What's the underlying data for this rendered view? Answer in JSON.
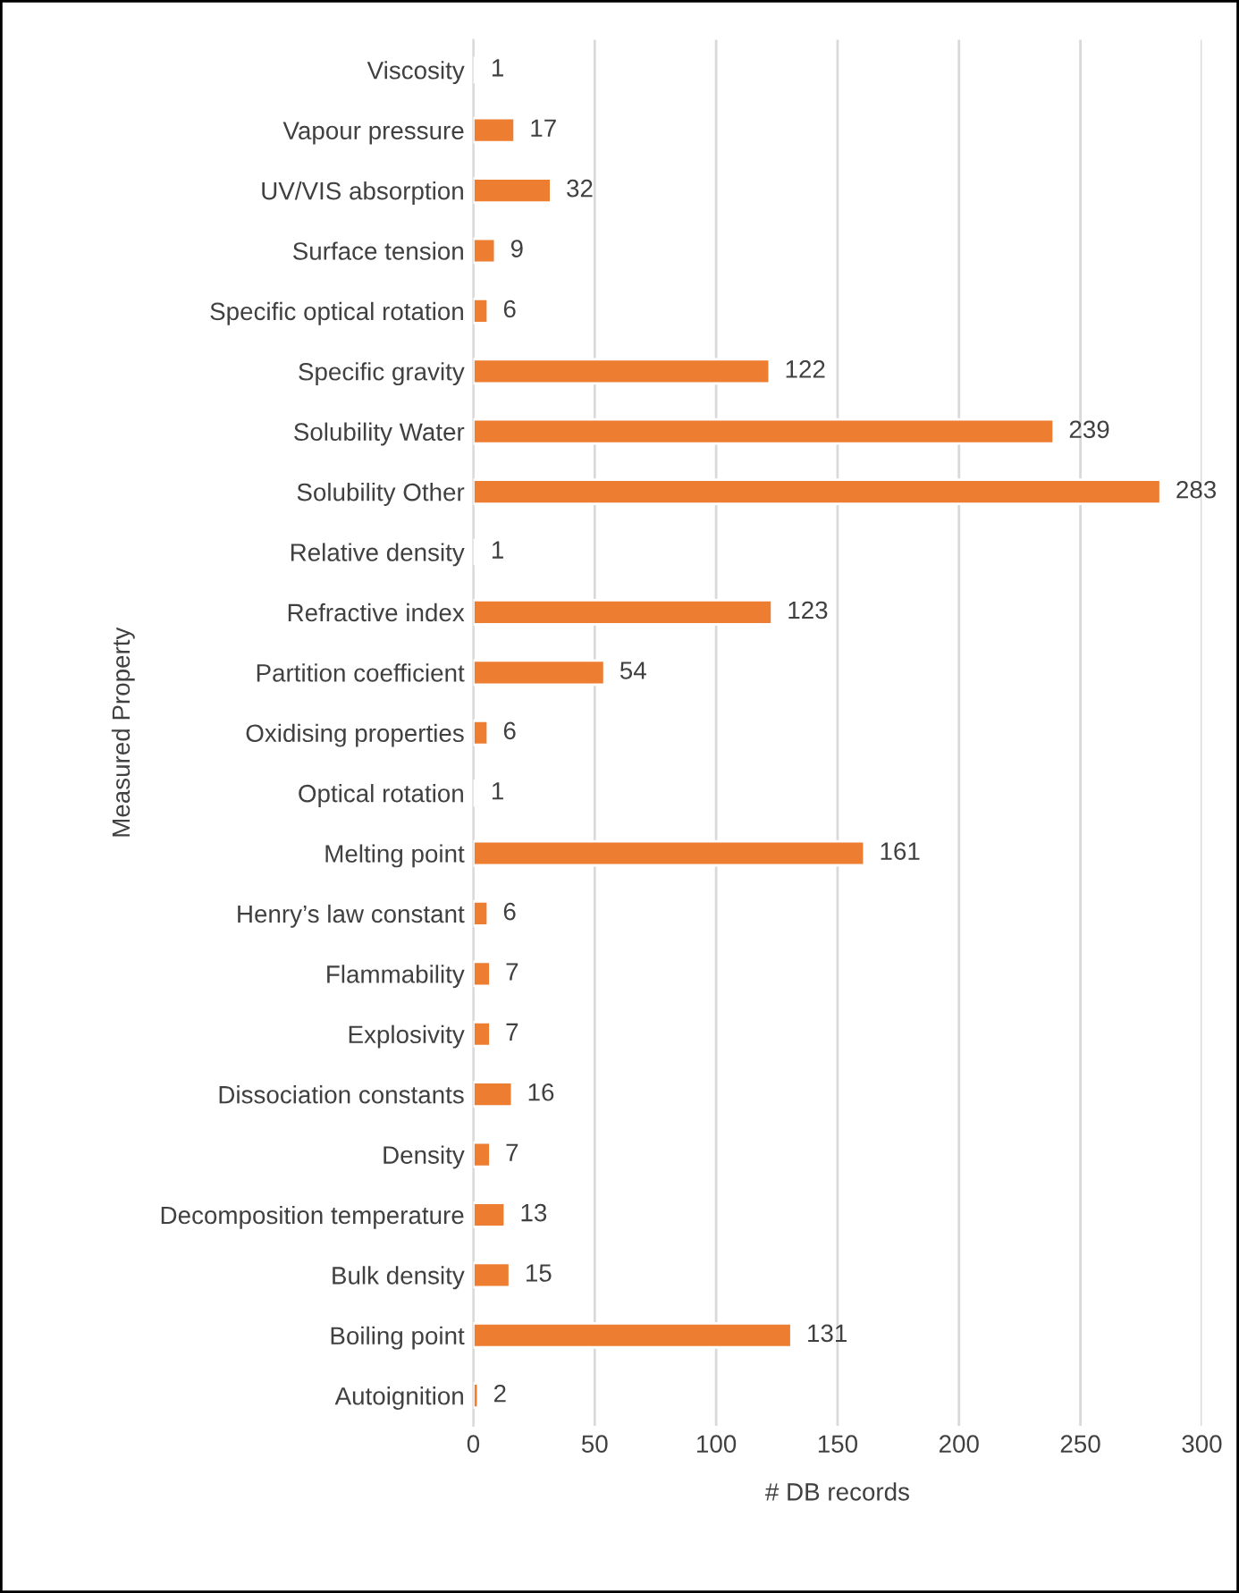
{
  "chart_data": {
    "type": "bar",
    "orientation": "horizontal",
    "xlabel": "# DB records",
    "ylabel": "Measured Property",
    "categories": [
      "Viscosity",
      "Vapour pressure",
      "UV/VIS absorption",
      "Surface tension",
      "Specific optical rotation",
      "Specific gravity",
      "Solubility Water",
      "Solubility Other",
      "Relative density",
      "Refractive index",
      "Partition coefficient",
      "Oxidising properties",
      "Optical rotation",
      "Melting point",
      "Henry’s law constant",
      "Flammability",
      "Explosivity",
      "Dissociation constants",
      "Density",
      "Decomposition temperature",
      "Bulk density",
      "Boiling point",
      "Autoignition"
    ],
    "values": [
      1,
      17,
      32,
      9,
      6,
      122,
      239,
      283,
      1,
      123,
      54,
      6,
      1,
      161,
      6,
      7,
      7,
      16,
      7,
      13,
      15,
      131,
      2
    ],
    "color": "#ed7d31",
    "xlim": [
      0,
      300
    ],
    "xticks": [
      0,
      50,
      100,
      150,
      200,
      250,
      300
    ],
    "grid": "x",
    "data_labels": true
  }
}
